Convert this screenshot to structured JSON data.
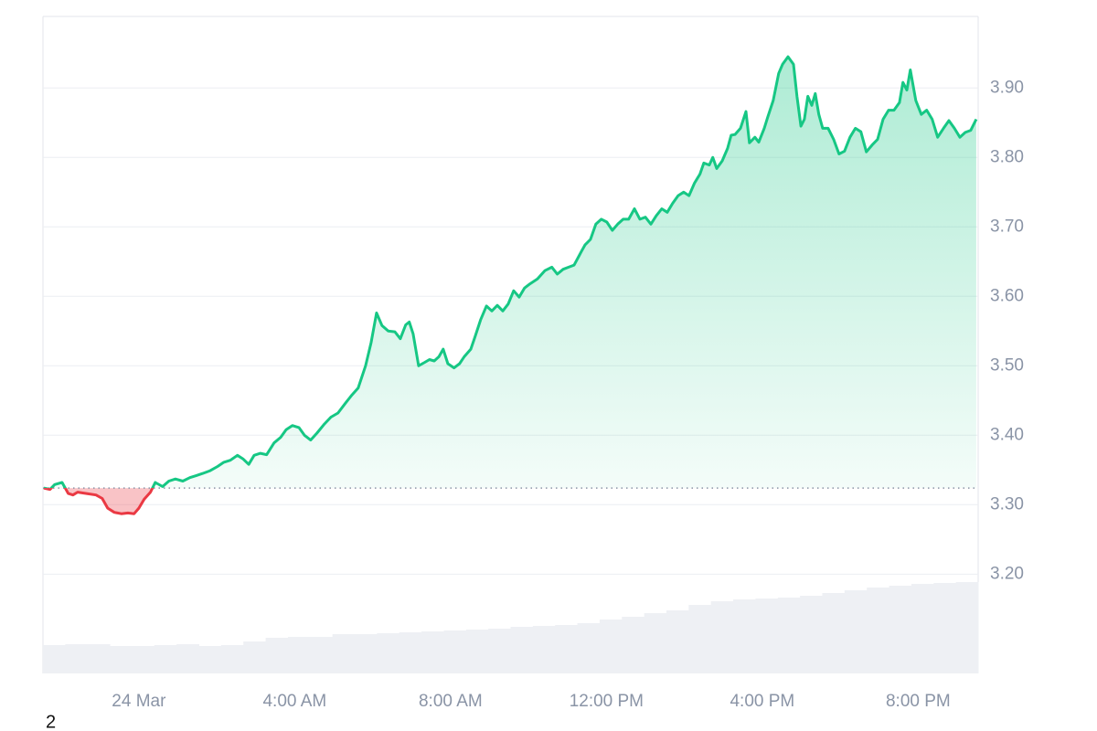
{
  "chart_data": {
    "type": "line",
    "x": [
      -2.44,
      -2.28,
      -2.16,
      -1.97,
      -1.81,
      -1.69,
      -1.57,
      -1.34,
      -1.1,
      -0.94,
      -0.8,
      -0.63,
      -0.45,
      -0.28,
      -0.12,
      0,
      0.14,
      0.3,
      0.42,
      0.61,
      0.77,
      0.94,
      1.13,
      1.31,
      1.48,
      1.64,
      1.83,
      2.02,
      2.18,
      2.35,
      2.53,
      2.67,
      2.82,
      2.96,
      3.12,
      3.28,
      3.47,
      3.64,
      3.78,
      3.94,
      4.11,
      4.25,
      4.41,
      4.57,
      4.76,
      4.93,
      5.11,
      5.3,
      5.47,
      5.63,
      5.82,
      5.96,
      6.1,
      6.24,
      6.4,
      6.57,
      6.71,
      6.85,
      6.94,
      7.04,
      7.18,
      7.34,
      7.46,
      7.58,
      7.7,
      7.81,
      7.93,
      8.09,
      8.23,
      8.35,
      8.52,
      8.63,
      8.77,
      8.92,
      9.06,
      9.2,
      9.34,
      9.48,
      9.62,
      9.76,
      9.9,
      10.04,
      10.23,
      10.42,
      10.6,
      10.74,
      10.89,
      11.03,
      11.17,
      11.35,
      11.45,
      11.59,
      11.73,
      11.87,
      12.01,
      12.15,
      12.29,
      12.43,
      12.57,
      12.72,
      12.86,
      13.0,
      13.14,
      13.28,
      13.42,
      13.56,
      13.7,
      13.84,
      13.98,
      14.12,
      14.26,
      14.4,
      14.5,
      14.64,
      14.73,
      14.83,
      14.97,
      15.11,
      15.2,
      15.3,
      15.44,
      15.58,
      15.67,
      15.81,
      15.91,
      16.05,
      16.14,
      16.28,
      16.42,
      16.52,
      16.66,
      16.8,
      16.89,
      16.99,
      17.08,
      17.17,
      17.27,
      17.36,
      17.45,
      17.55,
      17.69,
      17.83,
      17.97,
      18.11,
      18.25,
      18.39,
      18.53,
      18.67,
      18.82,
      18.96,
      19.1,
      19.24,
      19.38,
      19.52,
      19.61,
      19.71,
      19.8,
      19.94,
      20.08,
      20.22,
      20.36,
      20.5,
      20.65,
      20.79,
      20.93,
      21.07,
      21.21,
      21.35,
      21.49
    ],
    "series": [
      {
        "color": "#16c784",
        "color_below": "#ea3943",
        "values": [
          3.324,
          3.322,
          3.329,
          3.332,
          3.316,
          3.314,
          3.318,
          3.316,
          3.314,
          3.309,
          3.295,
          3.289,
          3.287,
          3.288,
          3.287,
          3.295,
          3.308,
          3.318,
          3.332,
          3.326,
          3.334,
          3.337,
          3.334,
          3.339,
          3.342,
          3.345,
          3.349,
          3.355,
          3.361,
          3.364,
          3.371,
          3.366,
          3.358,
          3.371,
          3.374,
          3.372,
          3.389,
          3.397,
          3.408,
          3.414,
          3.411,
          3.4,
          3.393,
          3.403,
          3.416,
          3.426,
          3.432,
          3.446,
          3.458,
          3.468,
          3.5,
          3.533,
          3.576,
          3.558,
          3.55,
          3.549,
          3.539,
          3.559,
          3.563,
          3.546,
          3.5,
          3.505,
          3.509,
          3.507,
          3.513,
          3.524,
          3.503,
          3.497,
          3.503,
          3.513,
          3.524,
          3.542,
          3.566,
          3.586,
          3.579,
          3.587,
          3.579,
          3.589,
          3.608,
          3.599,
          3.612,
          3.618,
          3.625,
          3.637,
          3.642,
          3.632,
          3.639,
          3.642,
          3.645,
          3.664,
          3.674,
          3.682,
          3.704,
          3.711,
          3.707,
          3.695,
          3.704,
          3.711,
          3.711,
          3.726,
          3.711,
          3.714,
          3.704,
          3.716,
          3.726,
          3.721,
          3.734,
          3.745,
          3.75,
          3.745,
          3.763,
          3.776,
          3.792,
          3.789,
          3.8,
          3.784,
          3.795,
          3.813,
          3.832,
          3.833,
          3.842,
          3.866,
          3.821,
          3.829,
          3.822,
          3.842,
          3.858,
          3.882,
          3.921,
          3.934,
          3.945,
          3.934,
          3.888,
          3.845,
          3.855,
          3.888,
          3.875,
          3.892,
          3.862,
          3.842,
          3.842,
          3.826,
          3.805,
          3.809,
          3.829,
          3.842,
          3.837,
          3.808,
          3.818,
          3.826,
          3.855,
          3.868,
          3.868,
          3.879,
          3.908,
          3.897,
          3.926,
          3.882,
          3.862,
          3.868,
          3.855,
          3.829,
          3.842,
          3.853,
          3.842,
          3.829,
          3.836,
          3.839,
          3.855
        ]
      }
    ],
    "baseline": 3.324,
    "volume": {
      "color": "#eef0f4",
      "values": [
        31,
        32,
        32,
        30,
        30,
        31,
        32,
        30,
        31,
        35,
        39,
        40,
        40,
        43,
        43,
        44,
        45,
        46,
        47,
        48,
        49,
        51,
        52,
        53,
        55,
        59,
        62,
        66,
        69,
        75,
        79,
        81,
        82,
        83,
        85,
        88,
        91,
        94,
        96,
        98,
        99,
        100
      ]
    },
    "xlim": [
      -2.46,
      21.54
    ],
    "xticks": [
      {
        "value": 0,
        "label": "24 Mar"
      },
      {
        "value": 4,
        "label": "4:00 AM"
      },
      {
        "value": 8,
        "label": "8:00 AM"
      },
      {
        "value": 12,
        "label": "12:00 PM"
      },
      {
        "value": 16,
        "label": "4:00 PM"
      },
      {
        "value": 20,
        "label": "8:00 PM"
      }
    ],
    "ylim": [
      3.057,
      4.003
    ],
    "yticks": [
      {
        "value": 3.2,
        "label": "3.20"
      },
      {
        "value": 3.3,
        "label": "3.30"
      },
      {
        "value": 3.4,
        "label": "3.40"
      },
      {
        "value": 3.5,
        "label": "3.50"
      },
      {
        "value": 3.6,
        "label": "3.60"
      },
      {
        "value": 3.7,
        "label": "3.70"
      },
      {
        "value": 3.8,
        "label": "3.80"
      },
      {
        "value": 3.9,
        "label": "3.90"
      }
    ],
    "grid": true,
    "footnote": "2"
  }
}
